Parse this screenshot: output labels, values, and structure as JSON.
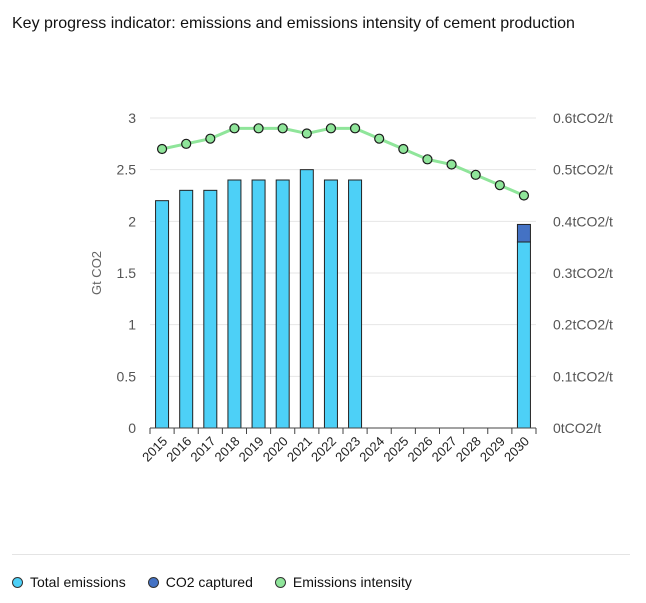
{
  "title": "Key progress indicator: emissions and emissions intensity of cement production",
  "legend": [
    {
      "label": "Total emissions",
      "color": "#4dd0f7"
    },
    {
      "label": "CO2 captured",
      "color": "#4472c4"
    },
    {
      "label": "Emissions intensity",
      "color": "#8fe59a"
    }
  ],
  "chart_data": {
    "type": "bar",
    "categories": [
      "2015",
      "2016",
      "2017",
      "2018",
      "2019",
      "2020",
      "2021",
      "2022",
      "2023",
      "2024",
      "2025",
      "2026",
      "2027",
      "2028",
      "2029",
      "2030"
    ],
    "ylabel": "Gt CO2",
    "ylim": [
      0,
      3
    ],
    "yticks": [
      "0",
      "0.5",
      "1",
      "1.5",
      "2",
      "2.5",
      "3"
    ],
    "y2lim": [
      0,
      0.6
    ],
    "y2ticks": [
      "0tCO2/t",
      "0.1tCO2/t",
      "0.2tCO2/t",
      "0.3tCO2/t",
      "0.4tCO2/t",
      "0.5tCO2/t",
      "0.6tCO2/t"
    ],
    "grid": true,
    "legend_position": "bottom",
    "series": [
      {
        "name": "Total emissions",
        "type": "bar",
        "axis": "left",
        "color": "#4dd0f7",
        "values": [
          2.2,
          2.3,
          2.3,
          2.4,
          2.4,
          2.4,
          2.5,
          2.4,
          2.4,
          null,
          null,
          null,
          null,
          null,
          null,
          1.8
        ]
      },
      {
        "name": "CO2 captured",
        "type": "bar",
        "axis": "left",
        "stacked": true,
        "color": "#4472c4",
        "values": [
          null,
          null,
          null,
          null,
          null,
          null,
          null,
          null,
          null,
          null,
          null,
          null,
          null,
          null,
          null,
          0.17
        ]
      },
      {
        "name": "Emissions intensity",
        "type": "line",
        "axis": "right",
        "color": "#8fe59a",
        "values": [
          0.54,
          0.55,
          0.56,
          0.58,
          0.58,
          0.58,
          0.57,
          0.58,
          0.58,
          0.56,
          0.54,
          0.52,
          0.51,
          0.49,
          0.47,
          0.45
        ]
      }
    ]
  }
}
